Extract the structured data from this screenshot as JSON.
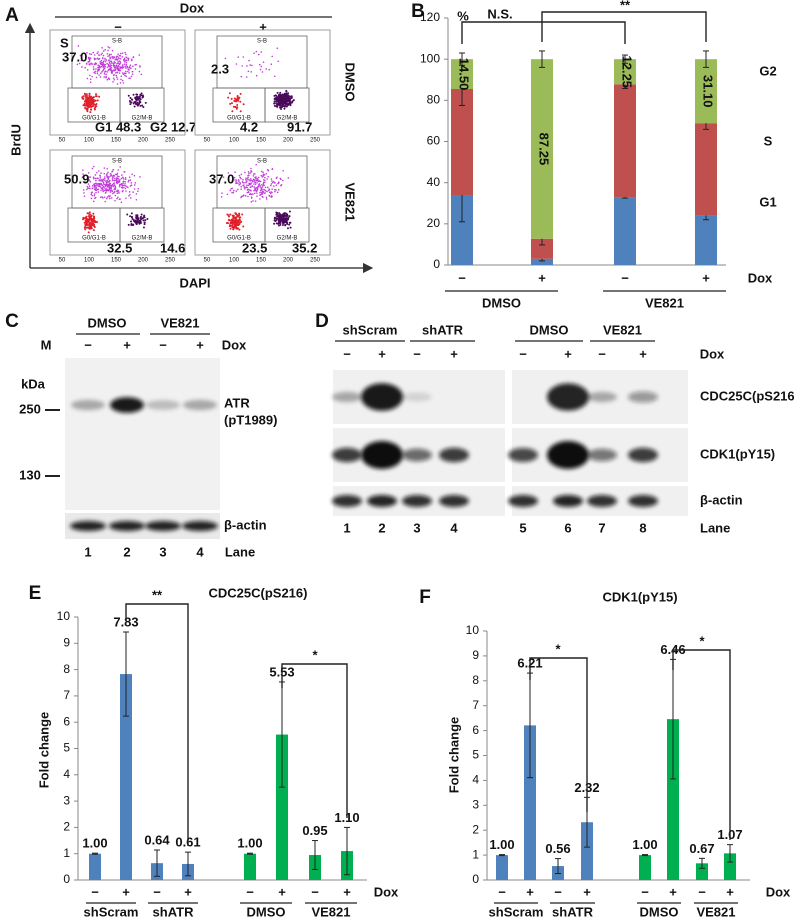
{
  "figure": {
    "panel_a": {
      "label": "A",
      "treatment": "Dox",
      "conditions": [
        "−",
        "+"
      ],
      "rows": [
        "DMSO",
        "VE821"
      ],
      "y_axis": "BrdU",
      "x_axis": "DAPI",
      "gates": [
        "S-B",
        "G0/G1-B",
        "G2/M-B"
      ],
      "ticks": [
        "50",
        "100",
        "150",
        "200",
        "250"
      ],
      "plots": [
        {
          "texts": [
            "S",
            "37.0",
            "G1 48.3",
            "G2 12.7"
          ]
        },
        {
          "texts": [
            "2.3",
            "4.2",
            "91.7"
          ]
        },
        {
          "texts": [
            "50.9",
            "32.5",
            "14.6"
          ]
        },
        {
          "texts": [
            "37.0",
            "23.5",
            "35.2"
          ]
        }
      ]
    },
    "panel_c": {
      "label": "C",
      "groups": [
        "DMSO",
        "VE821"
      ],
      "marker": "M",
      "conditions": [
        "−",
        "+",
        "−",
        "+"
      ],
      "treatment": "Dox",
      "unit": "kDa",
      "markers": [
        "250",
        "130"
      ],
      "target": [
        "ATR",
        "(pT1989)"
      ],
      "loading": "β-actin",
      "lanes": [
        "1",
        "2",
        "3",
        "4"
      ],
      "lane_label": "Lane"
    },
    "panel_d": {
      "label": "D",
      "groups": [
        "shScram",
        "shATR",
        "DMSO",
        "VE821"
      ],
      "conditions": [
        "−",
        "+",
        "−",
        "+",
        "−",
        "+",
        "−",
        "+"
      ],
      "treatment": "Dox",
      "rows": [
        "CDC25C(pS216)",
        "CDK1(pY15)",
        "β-actin"
      ],
      "lanes": [
        "1",
        "2",
        "3",
        "4",
        "5",
        "6",
        "7",
        "8"
      ],
      "lane_label": "Lane"
    }
  },
  "chart_data": [
    {
      "type": "bar",
      "stacked": true,
      "panel_label": "B",
      "y_unit": "%",
      "categories": [
        "−",
        "+",
        "−",
        "+"
      ],
      "groups": [
        "DMSO",
        "VE821"
      ],
      "x_label": "Dox",
      "series": [
        {
          "name": "G1",
          "color": "#4f81bd",
          "values": [
            34,
            3,
            33,
            24
          ],
          "errors": [
            13,
            1,
            0.5,
            2
          ]
        },
        {
          "name": "S",
          "color": "#c0504d",
          "values": [
            51.5,
            9.75,
            54.75,
            44.9
          ],
          "errors": [
            8,
            3,
            2,
            3
          ]
        },
        {
          "name": "G2",
          "color": "#9bbb59",
          "values": [
            14.5,
            87.25,
            12.25,
            31.1
          ],
          "value_labels": [
            "14.50",
            "87.25",
            "12.25",
            "31.10"
          ],
          "errors": [
            3,
            4,
            2,
            4
          ]
        }
      ],
      "ylim": [
        0,
        120
      ],
      "yticks": [
        0,
        20,
        40,
        60,
        80,
        100,
        120
      ],
      "annotations": [
        "N.S.",
        "**"
      ]
    },
    {
      "type": "bar",
      "panel_label": "E",
      "title": "CDC25C(pS216)",
      "y_label": "Fold change",
      "categories": [
        "−",
        "+",
        "−",
        "+",
        "−",
        "+",
        "−",
        "+"
      ],
      "groups": [
        "shScram",
        "shATR",
        "DMSO",
        "VE821"
      ],
      "x_label": "Dox",
      "values": [
        1.0,
        7.83,
        0.64,
        0.61,
        1.0,
        5.53,
        0.95,
        1.1
      ],
      "value_labels": [
        "1.00",
        "7.83",
        "0.64",
        "0.61",
        "1.00",
        "5.53",
        "0.95",
        "1.10"
      ],
      "errors": [
        0.02,
        1.6,
        0.5,
        0.45,
        0.02,
        2.0,
        0.55,
        0.9
      ],
      "colors": [
        "#4f81bd",
        "#4f81bd",
        "#4f81bd",
        "#4f81bd",
        "#00b050",
        "#00b050",
        "#00b050",
        "#00b050"
      ],
      "ylim": [
        0,
        10
      ],
      "yticks": [
        0,
        1,
        2,
        3,
        4,
        5,
        6,
        7,
        8,
        9,
        10
      ],
      "annotations": [
        "**",
        "*"
      ]
    },
    {
      "type": "bar",
      "panel_label": "F",
      "title": "CDK1(pY15)",
      "y_label": "Fold change",
      "categories": [
        "−",
        "+",
        "−",
        "+",
        "−",
        "+",
        "−",
        "+"
      ],
      "groups": [
        "shScram",
        "shATR",
        "DMSO",
        "VE821"
      ],
      "x_label": "Dox",
      "values": [
        1.0,
        6.21,
        0.56,
        2.32,
        1.0,
        6.46,
        0.67,
        1.07
      ],
      "value_labels": [
        "1.00",
        "6.21",
        "0.56",
        "2.32",
        "1.00",
        "6.46",
        "0.67",
        "1.07"
      ],
      "errors": [
        0.02,
        2.1,
        0.3,
        1.0,
        0.02,
        2.4,
        0.2,
        0.35
      ],
      "colors": [
        "#4f81bd",
        "#4f81bd",
        "#4f81bd",
        "#4f81bd",
        "#00b050",
        "#00b050",
        "#00b050",
        "#00b050"
      ],
      "ylim": [
        0,
        10
      ],
      "yticks": [
        0,
        1,
        2,
        3,
        4,
        5,
        6,
        7,
        8,
        9,
        10
      ],
      "annotations": [
        "*",
        "*"
      ]
    }
  ]
}
